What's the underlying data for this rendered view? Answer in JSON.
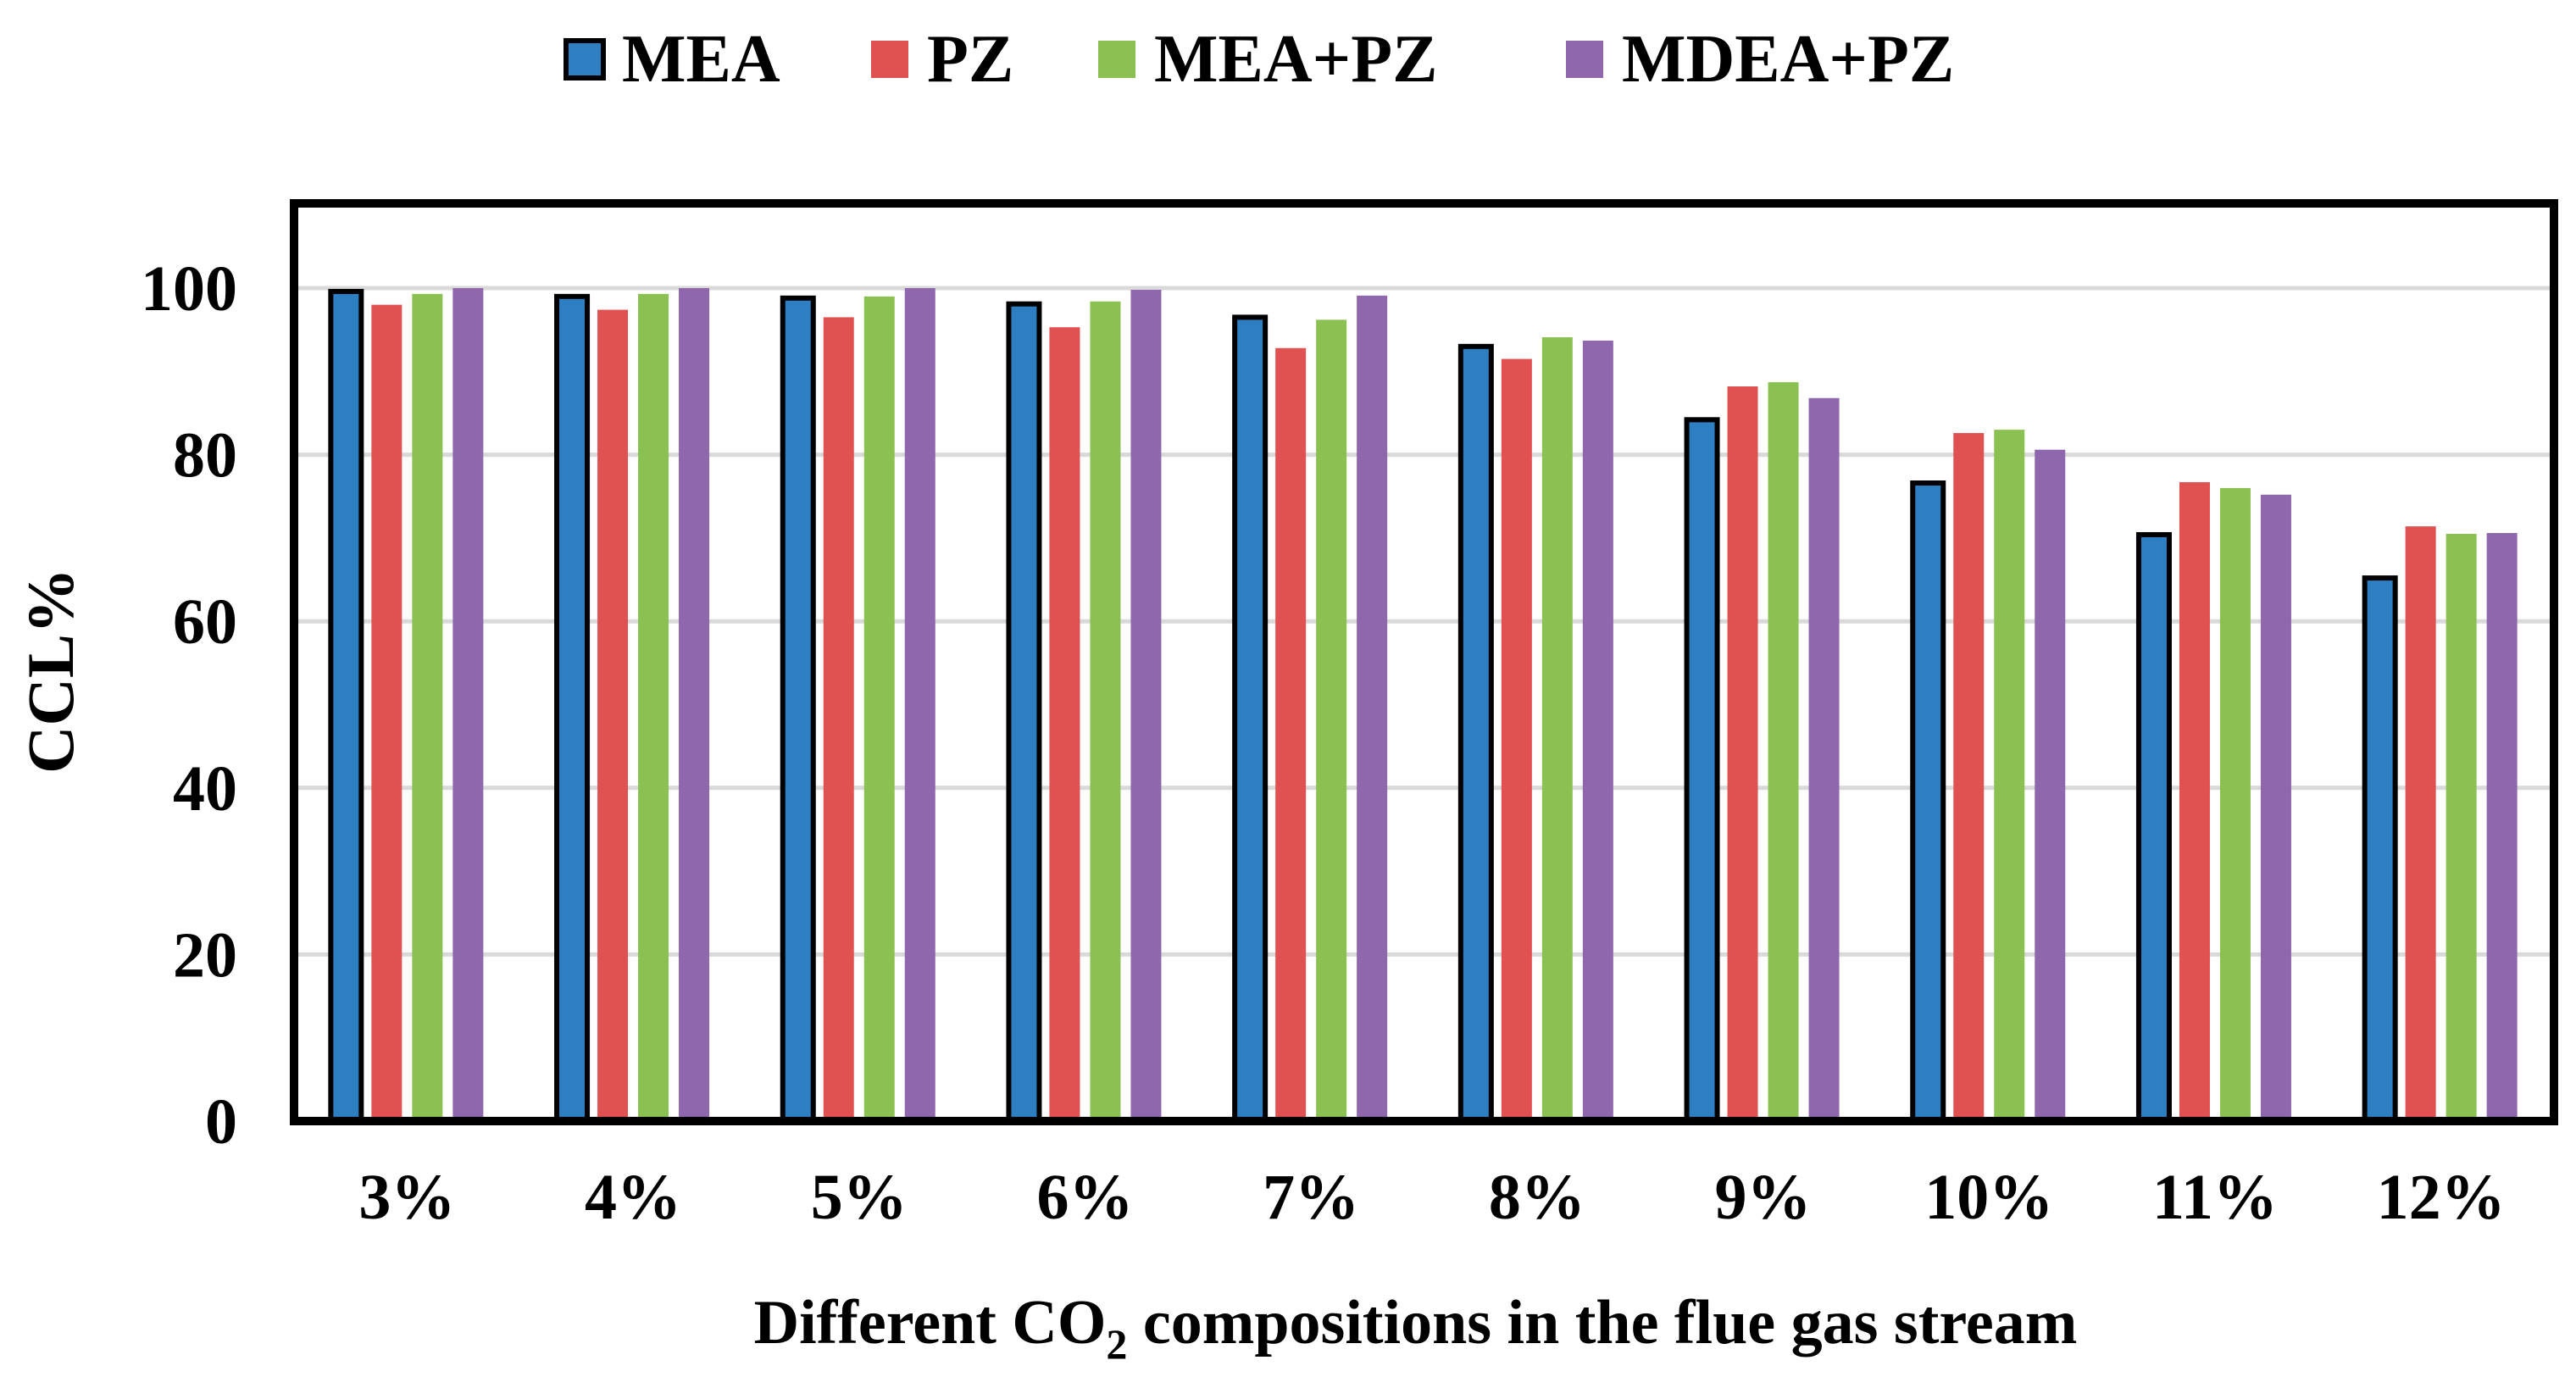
{
  "chart_data": {
    "type": "bar",
    "title": "",
    "xlabel": {
      "prefix": "Different CO",
      "subscript": "2",
      "suffix": " compositions in the flue gas stream"
    },
    "ylabel": "CCL%",
    "ylim": [
      0,
      110
    ],
    "yticks": [
      0,
      20,
      40,
      60,
      80,
      100
    ],
    "grid": true,
    "legend_position": "top",
    "categories": [
      "3%",
      "4%",
      "5%",
      "6%",
      "7%",
      "8%",
      "9%",
      "10%",
      "11%",
      "12%"
    ],
    "series": [
      {
        "name": "MEA",
        "color": "#2e7fc2",
        "outlined": true,
        "values": [
          99.6,
          99.0,
          98.8,
          98.1,
          96.5,
          93.0,
          84.2,
          76.6,
          70.4,
          65.2
        ]
      },
      {
        "name": "PZ",
        "color": "#e05252",
        "outlined": false,
        "values": [
          98.0,
          97.4,
          96.5,
          95.3,
          92.8,
          91.5,
          88.2,
          82.6,
          76.7,
          71.4
        ]
      },
      {
        "name": "MEA+PZ",
        "color": "#8bc152",
        "outlined": false,
        "values": [
          99.3,
          99.3,
          99.0,
          98.4,
          96.2,
          94.1,
          88.7,
          83.0,
          76.0,
          70.5
        ]
      },
      {
        "name": "MDEA+PZ",
        "color": "#8e67ad",
        "outlined": false,
        "values": [
          100.0,
          100.0,
          100.0,
          99.8,
          99.1,
          93.7,
          86.8,
          80.6,
          75.2,
          70.6
        ]
      }
    ]
  }
}
